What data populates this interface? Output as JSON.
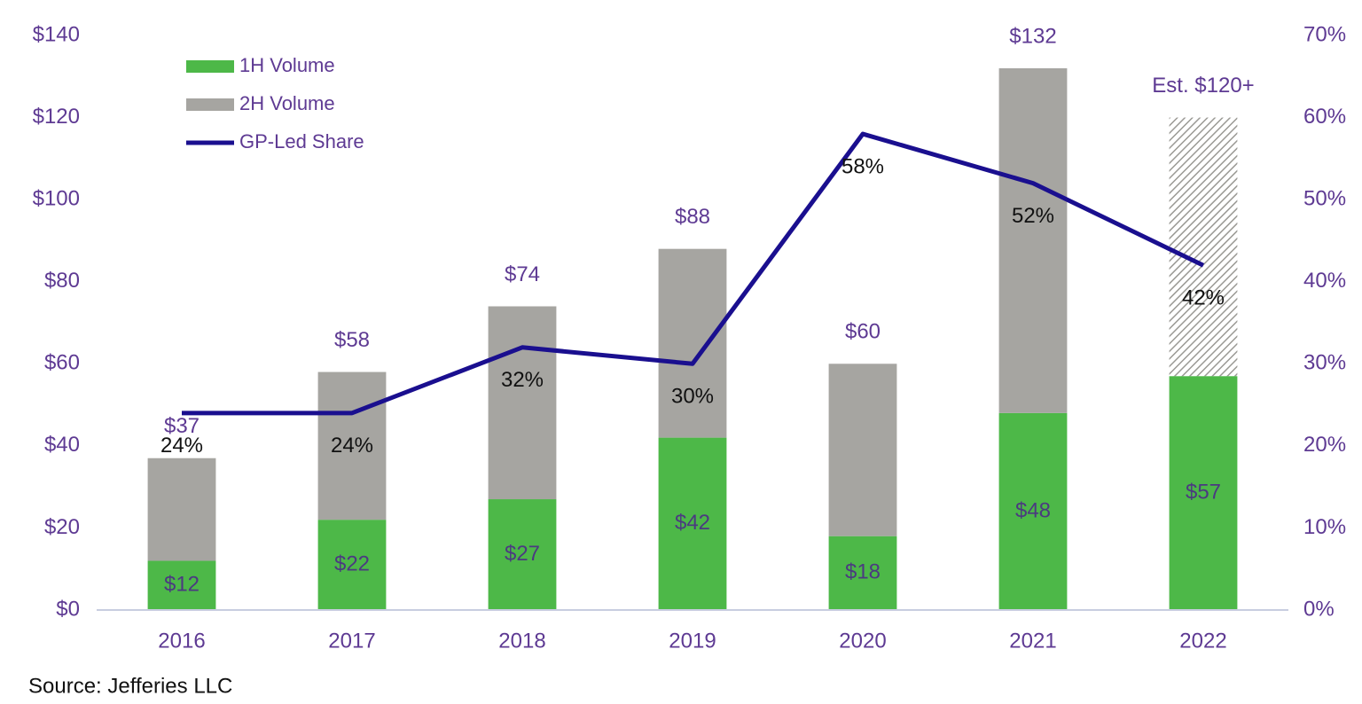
{
  "chart_data": {
    "type": "bar",
    "categories": [
      "2016",
      "2017",
      "2018",
      "2019",
      "2020",
      "2021",
      "2022"
    ],
    "series": [
      {
        "name": "1H Volume",
        "color": "#4db848",
        "values": [
          12,
          22,
          27,
          42,
          18,
          48,
          57
        ],
        "value_labels": [
          "$12",
          "$22",
          "$27",
          "$42",
          "$18",
          "$48",
          "$57"
        ]
      },
      {
        "name": "2H Volume",
        "color": "#a6a5a1",
        "values": [
          25,
          36,
          47,
          46,
          42,
          84,
          63
        ],
        "hatched": [
          false,
          false,
          false,
          false,
          false,
          false,
          true
        ]
      },
      {
        "name": "GP-Led Share",
        "type": "line",
        "axis": "y2",
        "color": "#1a0f8f",
        "values": [
          24,
          24,
          32,
          30,
          58,
          52,
          42
        ],
        "value_labels": [
          "24%",
          "24%",
          "32%",
          "30%",
          "58%",
          "52%",
          "42%"
        ]
      }
    ],
    "totals": {
      "values": [
        37,
        58,
        74,
        88,
        60,
        132,
        120
      ],
      "value_labels": [
        "$37",
        "$58",
        "$74",
        "$88",
        "$60",
        "$132",
        "Est. $120+"
      ]
    },
    "ylim": [
      0,
      140
    ],
    "yticks": [
      {
        "value": 0,
        "label": "$0"
      },
      {
        "value": 20,
        "label": "$20"
      },
      {
        "value": 40,
        "label": "$40"
      },
      {
        "value": 60,
        "label": "$60"
      },
      {
        "value": 80,
        "label": "$80"
      },
      {
        "value": 100,
        "label": "$100"
      },
      {
        "value": 120,
        "label": "$120"
      },
      {
        "value": 140,
        "label": "$140"
      }
    ],
    "y2lim": [
      0,
      70
    ],
    "y2ticks": [
      {
        "value": 0,
        "label": "0%"
      },
      {
        "value": 10,
        "label": "10%"
      },
      {
        "value": 20,
        "label": "20%"
      },
      {
        "value": 30,
        "label": "30%"
      },
      {
        "value": 40,
        "label": "40%"
      },
      {
        "value": 50,
        "label": "50%"
      },
      {
        "value": 60,
        "label": "60%"
      },
      {
        "value": 70,
        "label": "70%"
      }
    ],
    "grid": false,
    "legend": "upper left",
    "source": "Source: Jefferies LLC"
  }
}
